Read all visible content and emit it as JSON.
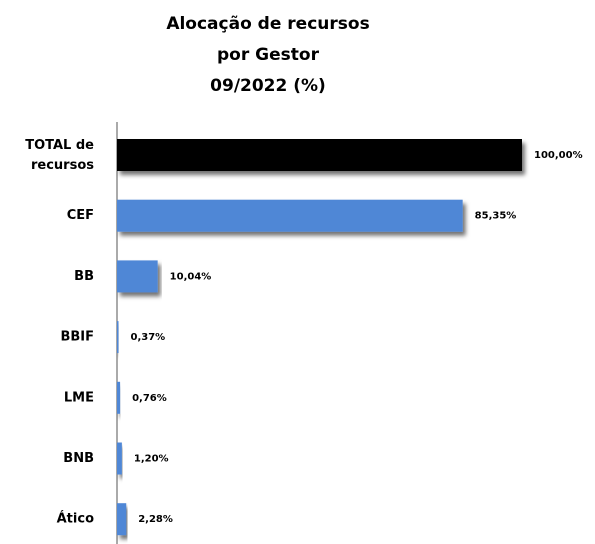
{
  "chart_data": {
    "type": "hbar",
    "title": [
      "Alocação de recursos",
      "por Gestor",
      "09/2022 (%)"
    ],
    "categories": [
      "TOTAL de recursos",
      "CEF",
      "BB",
      "BBIF",
      "LME",
      "BNB",
      "Ático"
    ],
    "values": [
      100,
      85.35,
      10.04,
      0.37,
      0.76,
      1.2,
      2.28
    ],
    "value_labels": [
      "100,00%",
      "85,35%",
      "10,04%",
      "0,37%",
      "0,76%",
      "1,20%",
      "2,28%"
    ],
    "colors": [
      "#000000",
      "#4f87d6",
      "#4f87d6",
      "#4f87d6",
      "#4f87d6",
      "#4f87d6",
      "#4f87d6"
    ]
  }
}
